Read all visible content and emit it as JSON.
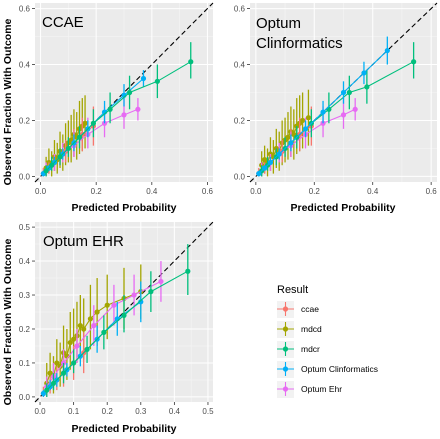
{
  "y_axis_label": "Observed Fraction With Outcome",
  "legend": {
    "title": "Result",
    "items": [
      {
        "label": "ccae",
        "color": "#F8766D"
      },
      {
        "label": "mdcd",
        "color": "#A3A500"
      },
      {
        "label": "mdcr",
        "color": "#00BF7D"
      },
      {
        "label": "Optum Clinformatics",
        "color": "#00B0F6"
      },
      {
        "label": "Optum Ehr",
        "color": "#E76BF3"
      }
    ]
  },
  "chart_data": [
    {
      "type": "scatter",
      "title": "CCAE",
      "xlabel": "Predicted Probability",
      "ylabel": "Observed Fraction With Outcome",
      "xlim": [
        -0.02,
        0.62
      ],
      "ylim": [
        -0.02,
        0.62
      ],
      "x_ticks": [
        "0.0",
        "0.2",
        "0.4",
        "0.6"
      ],
      "y_ticks": [
        "0.0",
        "0.2",
        "0.4",
        "0.6"
      ],
      "grid": true,
      "diagonal_reference": true,
      "series": [
        {
          "name": "mdcd",
          "points": [
            [
              0.02,
              0.03,
              0.0,
              0.07
            ],
            [
              0.03,
              0.05,
              0.01,
              0.1
            ],
            [
              0.04,
              0.04,
              0.0,
              0.09
            ],
            [
              0.05,
              0.07,
              0.02,
              0.13
            ],
            [
              0.06,
              0.06,
              0.01,
              0.12
            ],
            [
              0.07,
              0.09,
              0.03,
              0.16
            ],
            [
              0.08,
              0.08,
              0.02,
              0.15
            ],
            [
              0.09,
              0.11,
              0.04,
              0.19
            ],
            [
              0.1,
              0.12,
              0.05,
              0.2
            ],
            [
              0.11,
              0.13,
              0.05,
              0.22
            ],
            [
              0.12,
              0.15,
              0.07,
              0.24
            ],
            [
              0.13,
              0.14,
              0.06,
              0.23
            ],
            [
              0.14,
              0.17,
              0.08,
              0.27
            ],
            [
              0.15,
              0.18,
              0.09,
              0.28
            ],
            [
              0.16,
              0.19,
              0.1,
              0.29
            ]
          ]
        },
        {
          "name": "ccae",
          "points": [
            [
              0.01,
              0.01,
              0.0,
              0.03
            ],
            [
              0.03,
              0.03,
              0.01,
              0.05
            ],
            [
              0.05,
              0.05,
              0.02,
              0.08
            ],
            [
              0.07,
              0.07,
              0.04,
              0.1
            ],
            [
              0.09,
              0.09,
              0.05,
              0.13
            ],
            [
              0.12,
              0.12,
              0.07,
              0.17
            ],
            [
              0.15,
              0.15,
              0.09,
              0.21
            ],
            [
              0.19,
              0.18,
              0.11,
              0.25
            ]
          ]
        },
        {
          "name": "Optum Ehr",
          "points": [
            [
              0.02,
              0.02,
              0.0,
              0.05
            ],
            [
              0.05,
              0.05,
              0.02,
              0.08
            ],
            [
              0.08,
              0.08,
              0.05,
              0.12
            ],
            [
              0.12,
              0.11,
              0.07,
              0.16
            ],
            [
              0.17,
              0.15,
              0.1,
              0.21
            ],
            [
              0.23,
              0.19,
              0.14,
              0.25
            ],
            [
              0.3,
              0.22,
              0.17,
              0.28
            ],
            [
              0.35,
              0.24,
              0.2,
              0.28
            ]
          ]
        },
        {
          "name": "Optum Clinformatics",
          "points": [
            [
              0.01,
              0.01,
              0.0,
              0.02
            ],
            [
              0.03,
              0.03,
              0.02,
              0.04
            ],
            [
              0.05,
              0.05,
              0.04,
              0.07
            ],
            [
              0.08,
              0.08,
              0.06,
              0.1
            ],
            [
              0.12,
              0.12,
              0.09,
              0.15
            ],
            [
              0.17,
              0.17,
              0.14,
              0.2
            ],
            [
              0.23,
              0.23,
              0.19,
              0.27
            ],
            [
              0.3,
              0.29,
              0.25,
              0.33
            ],
            [
              0.37,
              0.35,
              0.32,
              0.38
            ]
          ]
        },
        {
          "name": "mdcr",
          "points": [
            [
              0.02,
              0.02,
              0.0,
              0.04
            ],
            [
              0.04,
              0.04,
              0.02,
              0.07
            ],
            [
              0.07,
              0.07,
              0.04,
              0.1
            ],
            [
              0.1,
              0.1,
              0.07,
              0.14
            ],
            [
              0.14,
              0.14,
              0.1,
              0.18
            ],
            [
              0.19,
              0.19,
              0.14,
              0.24
            ],
            [
              0.25,
              0.24,
              0.19,
              0.3
            ],
            [
              0.32,
              0.3,
              0.24,
              0.36
            ],
            [
              0.42,
              0.34,
              0.28,
              0.4
            ],
            [
              0.54,
              0.41,
              0.35,
              0.48
            ]
          ]
        }
      ]
    },
    {
      "type": "scatter",
      "title": "Optum\nClinformatics",
      "xlabel": "Predicted Probability",
      "ylabel": "",
      "xlim": [
        -0.02,
        0.62
      ],
      "ylim": [
        -0.02,
        0.62
      ],
      "x_ticks": [
        "0.0",
        "0.2",
        "0.4",
        "0.6"
      ],
      "y_ticks": [
        "0.0",
        "0.2",
        "0.4",
        "0.6"
      ],
      "grid": true,
      "diagonal_reference": true,
      "series": [
        {
          "name": "mdcd",
          "points": [
            [
              0.02,
              0.04,
              0.0,
              0.09
            ],
            [
              0.03,
              0.06,
              0.01,
              0.11
            ],
            [
              0.04,
              0.05,
              0.0,
              0.1
            ],
            [
              0.05,
              0.08,
              0.02,
              0.14
            ],
            [
              0.06,
              0.07,
              0.01,
              0.13
            ],
            [
              0.07,
              0.1,
              0.03,
              0.17
            ],
            [
              0.08,
              0.09,
              0.02,
              0.16
            ],
            [
              0.09,
              0.12,
              0.04,
              0.2
            ],
            [
              0.1,
              0.13,
              0.05,
              0.21
            ],
            [
              0.11,
              0.14,
              0.06,
              0.23
            ],
            [
              0.12,
              0.16,
              0.07,
              0.25
            ],
            [
              0.13,
              0.15,
              0.06,
              0.24
            ],
            [
              0.14,
              0.18,
              0.08,
              0.28
            ],
            [
              0.15,
              0.19,
              0.09,
              0.29
            ],
            [
              0.16,
              0.2,
              0.1,
              0.3
            ],
            [
              0.18,
              0.21,
              0.11,
              0.31
            ]
          ]
        },
        {
          "name": "ccae",
          "points": [
            [
              0.01,
              0.01,
              0.0,
              0.03
            ],
            [
              0.03,
              0.03,
              0.01,
              0.05
            ],
            [
              0.05,
              0.05,
              0.02,
              0.08
            ],
            [
              0.07,
              0.07,
              0.04,
              0.1
            ],
            [
              0.09,
              0.09,
              0.05,
              0.13
            ],
            [
              0.12,
              0.12,
              0.07,
              0.17
            ],
            [
              0.15,
              0.15,
              0.09,
              0.21
            ],
            [
              0.19,
              0.18,
              0.11,
              0.25
            ]
          ]
        },
        {
          "name": "Optum Ehr",
          "points": [
            [
              0.02,
              0.02,
              0.0,
              0.05
            ],
            [
              0.05,
              0.05,
              0.02,
              0.08
            ],
            [
              0.08,
              0.08,
              0.05,
              0.12
            ],
            [
              0.12,
              0.11,
              0.07,
              0.16
            ],
            [
              0.17,
              0.15,
              0.1,
              0.21
            ],
            [
              0.23,
              0.19,
              0.14,
              0.25
            ],
            [
              0.3,
              0.22,
              0.17,
              0.28
            ],
            [
              0.34,
              0.24,
              0.2,
              0.28
            ]
          ]
        },
        {
          "name": "mdcr",
          "points": [
            [
              0.02,
              0.02,
              0.0,
              0.04
            ],
            [
              0.04,
              0.04,
              0.02,
              0.07
            ],
            [
              0.07,
              0.07,
              0.04,
              0.1
            ],
            [
              0.1,
              0.1,
              0.07,
              0.14
            ],
            [
              0.14,
              0.14,
              0.1,
              0.18
            ],
            [
              0.19,
              0.19,
              0.14,
              0.24
            ],
            [
              0.25,
              0.24,
              0.19,
              0.3
            ],
            [
              0.32,
              0.3,
              0.24,
              0.36
            ],
            [
              0.38,
              0.32,
              0.26,
              0.38
            ],
            [
              0.54,
              0.41,
              0.35,
              0.48
            ]
          ]
        },
        {
          "name": "Optum Clinformatics",
          "points": [
            [
              0.01,
              0.01,
              0.0,
              0.02
            ],
            [
              0.03,
              0.03,
              0.02,
              0.04
            ],
            [
              0.05,
              0.05,
              0.04,
              0.07
            ],
            [
              0.08,
              0.08,
              0.06,
              0.1
            ],
            [
              0.12,
              0.12,
              0.09,
              0.15
            ],
            [
              0.17,
              0.17,
              0.14,
              0.2
            ],
            [
              0.23,
              0.23,
              0.19,
              0.27
            ],
            [
              0.3,
              0.3,
              0.26,
              0.34
            ],
            [
              0.37,
              0.37,
              0.33,
              0.41
            ],
            [
              0.45,
              0.45,
              0.4,
              0.5
            ]
          ]
        }
      ]
    },
    {
      "type": "scatter",
      "title": "Optum EHR",
      "xlabel": "Predicted Probability",
      "ylabel": "Observed Fraction With Outcome",
      "xlim": [
        -0.015,
        0.515
      ],
      "ylim": [
        -0.015,
        0.515
      ],
      "x_ticks": [
        "0.0",
        "0.1",
        "0.2",
        "0.3",
        "0.4",
        "0.5"
      ],
      "y_ticks": [
        "0.0",
        "0.1",
        "0.2",
        "0.3",
        "0.4",
        "0.5"
      ],
      "grid": true,
      "diagonal_reference": true,
      "series": [
        {
          "name": "mdcd",
          "points": [
            [
              0.02,
              0.04,
              0.0,
              0.1
            ],
            [
              0.03,
              0.07,
              0.02,
              0.13
            ],
            [
              0.04,
              0.06,
              0.01,
              0.12
            ],
            [
              0.05,
              0.1,
              0.04,
              0.17
            ],
            [
              0.06,
              0.09,
              0.03,
              0.16
            ],
            [
              0.07,
              0.13,
              0.06,
              0.21
            ],
            [
              0.08,
              0.12,
              0.05,
              0.2
            ],
            [
              0.09,
              0.16,
              0.08,
              0.25
            ],
            [
              0.1,
              0.17,
              0.09,
              0.26
            ],
            [
              0.11,
              0.18,
              0.1,
              0.28
            ],
            [
              0.12,
              0.21,
              0.12,
              0.3
            ],
            [
              0.13,
              0.2,
              0.11,
              0.29
            ],
            [
              0.15,
              0.23,
              0.14,
              0.33
            ],
            [
              0.17,
              0.25,
              0.15,
              0.35
            ],
            [
              0.2,
              0.27,
              0.17,
              0.36
            ],
            [
              0.25,
              0.29,
              0.2,
              0.38
            ],
            [
              0.3,
              0.31,
              0.23,
              0.39
            ]
          ]
        },
        {
          "name": "ccae",
          "points": [
            [
              0.01,
              0.01,
              0.0,
              0.03
            ],
            [
              0.03,
              0.03,
              0.01,
              0.06
            ],
            [
              0.05,
              0.05,
              0.02,
              0.09
            ],
            [
              0.07,
              0.07,
              0.03,
              0.11
            ],
            [
              0.1,
              0.1,
              0.05,
              0.15
            ],
            [
              0.13,
              0.13,
              0.07,
              0.19
            ]
          ]
        },
        {
          "name": "Optum Ehr",
          "points": [
            [
              0.02,
              0.03,
              0.0,
              0.06
            ],
            [
              0.04,
              0.06,
              0.03,
              0.1
            ],
            [
              0.07,
              0.1,
              0.06,
              0.14
            ],
            [
              0.11,
              0.15,
              0.1,
              0.2
            ],
            [
              0.16,
              0.21,
              0.15,
              0.27
            ],
            [
              0.22,
              0.27,
              0.21,
              0.33
            ],
            [
              0.28,
              0.3,
              0.24,
              0.36
            ],
            [
              0.36,
              0.34,
              0.28,
              0.4
            ]
          ]
        },
        {
          "name": "Optum Clinformatics",
          "points": [
            [
              0.01,
              0.01,
              0.0,
              0.02
            ],
            [
              0.03,
              0.03,
              0.02,
              0.05
            ],
            [
              0.05,
              0.05,
              0.03,
              0.07
            ],
            [
              0.08,
              0.08,
              0.06,
              0.1
            ],
            [
              0.12,
              0.12,
              0.09,
              0.15
            ],
            [
              0.17,
              0.17,
              0.13,
              0.21
            ],
            [
              0.23,
              0.23,
              0.18,
              0.28
            ],
            [
              0.3,
              0.28,
              0.22,
              0.34
            ]
          ]
        },
        {
          "name": "mdcr",
          "points": [
            [
              0.02,
              0.02,
              0.0,
              0.04
            ],
            [
              0.04,
              0.04,
              0.02,
              0.07
            ],
            [
              0.07,
              0.07,
              0.04,
              0.1
            ],
            [
              0.1,
              0.1,
              0.07,
              0.14
            ],
            [
              0.14,
              0.14,
              0.1,
              0.18
            ],
            [
              0.19,
              0.19,
              0.14,
              0.24
            ],
            [
              0.25,
              0.24,
              0.19,
              0.3
            ],
            [
              0.33,
              0.31,
              0.25,
              0.37
            ],
            [
              0.44,
              0.37,
              0.3,
              0.45
            ]
          ]
        }
      ]
    }
  ]
}
